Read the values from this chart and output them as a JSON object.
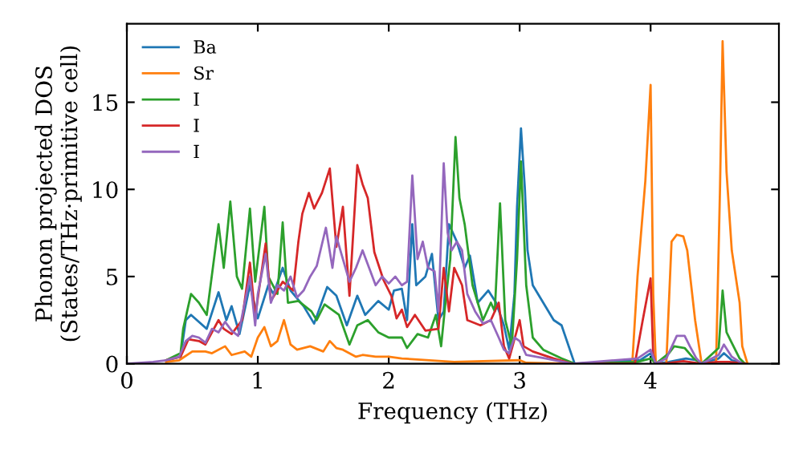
{
  "chart_data": {
    "type": "line",
    "xlabel": "Frequency (THz)",
    "ylabel": "Phonon projected DOS\n(States/THz·primitive cell)",
    "xlim": [
      0,
      4.98
    ],
    "ylim": [
      0,
      19.5
    ],
    "xticks": [
      0,
      1,
      2,
      3,
      4
    ],
    "yticks": [
      0,
      5,
      10,
      15
    ],
    "legend": "top left",
    "grid": false,
    "series": [
      {
        "name": "Ba",
        "color": "#1f77b4",
        "x": [
          0.3,
          0.41,
          0.45,
          0.49,
          0.61,
          0.7,
          0.76,
          0.8,
          0.86,
          0.94,
          1.0,
          1.08,
          1.12,
          1.19,
          1.25,
          1.35,
          1.43,
          1.53,
          1.6,
          1.68,
          1.76,
          1.82,
          1.92,
          2.0,
          2.04,
          2.1,
          2.14,
          2.18,
          2.21,
          2.28,
          2.33,
          2.38,
          2.42,
          2.46,
          2.52,
          2.58,
          2.62,
          2.68,
          2.76,
          2.82,
          2.88,
          2.92,
          2.96,
          2.98,
          3.01,
          3.04,
          3.06,
          3.1,
          3.18,
          3.26,
          3.32,
          3.42,
          3.92,
          4.0,
          4.04,
          4.14,
          4.27,
          4.35,
          4.39,
          4.52,
          4.56,
          4.62,
          4.72
        ],
        "values": [
          0.2,
          0.4,
          2.5,
          2.8,
          2.0,
          4.1,
          2.5,
          3.3,
          1.7,
          4.5,
          2.6,
          4.5,
          4.0,
          5.5,
          4.2,
          3.3,
          2.3,
          4.4,
          3.9,
          2.2,
          3.9,
          2.8,
          3.6,
          3.1,
          4.2,
          4.3,
          2.5,
          8.0,
          4.5,
          5.0,
          6.3,
          2.5,
          3.0,
          8.0,
          7.0,
          5.5,
          6.2,
          3.5,
          4.2,
          3.5,
          2.2,
          0.8,
          4.0,
          9.0,
          13.5,
          10.0,
          6.5,
          4.5,
          3.5,
          2.5,
          2.2,
          0,
          0.2,
          0.6,
          0,
          0.1,
          0.3,
          0.2,
          0,
          0.3,
          0.6,
          0.2,
          0
        ]
      },
      {
        "name": "Sr",
        "color": "#ff7f0e",
        "x": [
          0.3,
          0.4,
          0.5,
          0.6,
          0.65,
          0.75,
          0.8,
          0.9,
          0.95,
          1.0,
          1.05,
          1.1,
          1.15,
          1.2,
          1.25,
          1.3,
          1.4,
          1.5,
          1.55,
          1.6,
          1.65,
          1.75,
          1.8,
          1.9,
          2.0,
          2.1,
          2.5,
          3.0,
          3.05,
          3.4,
          3.86,
          3.9,
          3.96,
          4.0,
          4.02,
          4.04,
          4.12,
          4.16,
          4.2,
          4.25,
          4.28,
          4.34,
          4.39,
          4.5,
          4.53,
          4.55,
          4.58,
          4.62,
          4.68,
          4.7,
          4.74
        ],
        "values": [
          0.1,
          0.2,
          0.7,
          0.7,
          0.6,
          1.0,
          0.5,
          0.7,
          0.4,
          1.5,
          2.1,
          1.0,
          1.3,
          2.5,
          1.1,
          0.8,
          1.0,
          0.7,
          1.3,
          0.9,
          0.8,
          0.4,
          0.5,
          0.4,
          0.4,
          0.3,
          0.1,
          0.2,
          0.05,
          0,
          0,
          5.0,
          10.5,
          16.0,
          4.0,
          0,
          0,
          7.0,
          7.4,
          7.3,
          6.5,
          2.5,
          0,
          0,
          10.0,
          18.5,
          11.0,
          6.5,
          3.5,
          1.0,
          0
        ]
      },
      {
        "name": "I",
        "color": "#2ca02c",
        "x": [
          0.3,
          0.41,
          0.43,
          0.49,
          0.55,
          0.61,
          0.7,
          0.74,
          0.79,
          0.84,
          0.88,
          0.94,
          0.98,
          1.05,
          1.08,
          1.15,
          1.19,
          1.23,
          1.31,
          1.41,
          1.45,
          1.51,
          1.62,
          1.7,
          1.76,
          1.84,
          1.92,
          2.0,
          2.1,
          2.14,
          2.22,
          2.3,
          2.36,
          2.4,
          2.44,
          2.47,
          2.51,
          2.54,
          2.58,
          2.64,
          2.72,
          2.78,
          2.81,
          2.85,
          2.89,
          2.94,
          2.98,
          3.01,
          3.05,
          3.1,
          3.18,
          3.32,
          3.42,
          3.9,
          4.0,
          4.04,
          4.14,
          4.18,
          4.26,
          4.33,
          4.39,
          4.52,
          4.55,
          4.58,
          4.62,
          4.68,
          4.72
        ],
        "values": [
          0.2,
          0.6,
          2.0,
          4.0,
          3.5,
          2.8,
          8.0,
          5.5,
          9.3,
          5.0,
          4.3,
          8.9,
          4.7,
          9.0,
          5.0,
          4.0,
          8.1,
          3.5,
          3.6,
          3.0,
          2.5,
          3.4,
          2.8,
          1.1,
          2.2,
          2.5,
          1.8,
          1.5,
          1.5,
          0.9,
          1.7,
          1.5,
          2.8,
          1.0,
          4.0,
          6.0,
          13.0,
          9.5,
          8.0,
          4.5,
          2.5,
          3.5,
          3.0,
          9.2,
          2.5,
          1.0,
          6.0,
          11.6,
          4.5,
          1.5,
          0.8,
          0.3,
          0,
          0.1,
          0.3,
          0,
          0.6,
          1.0,
          0.9,
          0.3,
          0,
          0.9,
          4.2,
          1.8,
          1.2,
          0.3,
          0
        ]
      },
      {
        "name": "I",
        "color": "#d62728",
        "x": [
          0.3,
          0.41,
          0.47,
          0.55,
          0.6,
          0.7,
          0.74,
          0.8,
          0.88,
          0.94,
          0.98,
          1.06,
          1.1,
          1.19,
          1.27,
          1.31,
          1.34,
          1.39,
          1.43,
          1.49,
          1.55,
          1.6,
          1.65,
          1.7,
          1.76,
          1.8,
          1.84,
          1.89,
          1.96,
          2.02,
          2.06,
          2.1,
          2.14,
          2.2,
          2.28,
          2.38,
          2.42,
          2.46,
          2.5,
          2.56,
          2.6,
          2.7,
          2.78,
          2.84,
          2.88,
          2.92,
          3.0,
          3.03,
          3.1,
          3.26,
          3.4,
          3.88,
          3.94,
          4.0,
          4.02,
          4.04,
          4.1,
          4.25,
          4.39,
          4.5,
          4.6,
          4.72
        ],
        "values": [
          0.2,
          0.4,
          1.4,
          1.3,
          1.1,
          2.5,
          2.0,
          1.7,
          2.5,
          5.8,
          2.7,
          6.9,
          3.6,
          4.7,
          4.2,
          7.0,
          8.6,
          9.8,
          8.9,
          9.8,
          11.2,
          6.7,
          9.0,
          3.9,
          11.4,
          10.3,
          9.5,
          6.4,
          4.8,
          3.9,
          2.6,
          3.1,
          2.1,
          2.8,
          1.9,
          2.0,
          5.5,
          3.0,
          5.5,
          4.5,
          2.5,
          2.2,
          2.5,
          3.5,
          1.0,
          0.3,
          2.5,
          1.0,
          0.7,
          0.3,
          0,
          0,
          2.5,
          4.9,
          0.5,
          0,
          0,
          0.15,
          0,
          0.1,
          0.1,
          0
        ]
      },
      {
        "name": "I",
        "color": "#9467bd",
        "x": [
          0,
          0.2,
          0.3,
          0.4,
          0.45,
          0.5,
          0.55,
          0.6,
          0.65,
          0.7,
          0.75,
          0.8,
          0.85,
          0.9,
          0.94,
          0.98,
          1.0,
          1.06,
          1.1,
          1.15,
          1.2,
          1.25,
          1.3,
          1.35,
          1.4,
          1.45,
          1.52,
          1.57,
          1.6,
          1.65,
          1.7,
          1.75,
          1.8,
          1.85,
          1.9,
          1.95,
          2.0,
          2.05,
          2.1,
          2.14,
          2.18,
          2.22,
          2.26,
          2.3,
          2.35,
          2.38,
          2.42,
          2.45,
          2.48,
          2.52,
          2.56,
          2.6,
          2.66,
          2.72,
          2.78,
          2.84,
          2.88,
          2.92,
          2.96,
          3.0,
          3.05,
          3.2,
          3.4,
          3.9,
          4.0,
          4.04,
          4.12,
          4.2,
          4.26,
          4.3,
          4.35,
          4.39,
          4.52,
          4.56,
          4.62,
          4.7
        ],
        "values": [
          0,
          0.1,
          0.2,
          0.4,
          1.3,
          1.6,
          1.5,
          1.2,
          2.0,
          1.8,
          2.4,
          1.9,
          1.6,
          3.5,
          5.0,
          2.2,
          4.0,
          6.3,
          3.5,
          4.5,
          4.2,
          5.0,
          3.8,
          4.2,
          5.0,
          5.6,
          7.8,
          5.5,
          7.3,
          6.0,
          4.7,
          5.5,
          6.5,
          5.5,
          4.5,
          5.0,
          4.6,
          5.0,
          4.5,
          4.7,
          10.8,
          6.0,
          7.0,
          5.5,
          5.3,
          3.0,
          11.5,
          7.5,
          6.5,
          7.0,
          6.5,
          4.0,
          3.0,
          2.3,
          2.5,
          1.5,
          0.8,
          0.6,
          1.5,
          1.3,
          0.5,
          0.3,
          0,
          0.3,
          0.8,
          0,
          0.3,
          1.6,
          1.6,
          1.0,
          0.3,
          0,
          0.5,
          1.1,
          0.4,
          0
        ]
      }
    ]
  }
}
